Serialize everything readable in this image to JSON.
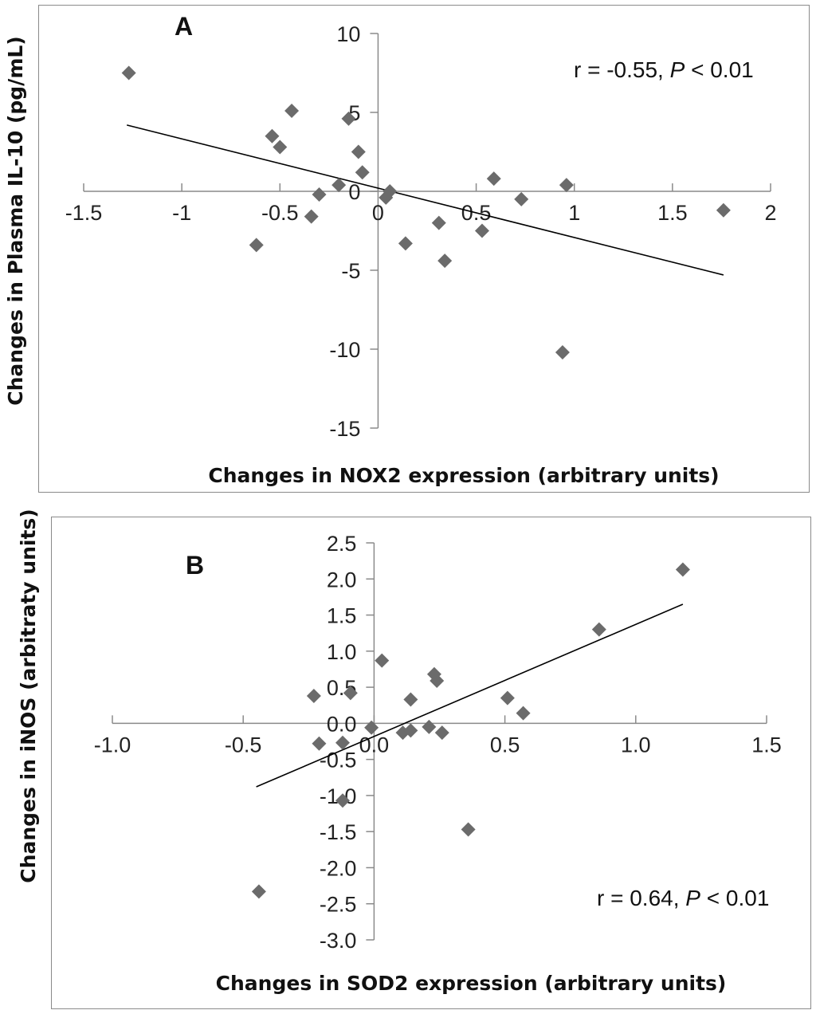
{
  "chart_data": [
    {
      "type": "scatter",
      "panel_label": "A",
      "title": "",
      "xlabel": "Changes in NOX2 expression (arbitrary units)",
      "ylabel": "Changes in Plasma IL-10 (pg/mL)",
      "xlim": [
        -1.5,
        2
      ],
      "ylim": [
        -15,
        10
      ],
      "xticks": [
        "-1.5",
        "-1",
        "-0.5",
        "0",
        "0.5",
        "1",
        "1.5",
        "2"
      ],
      "yticks": [
        "10",
        "5",
        "0",
        "-5",
        "-10",
        "-15"
      ],
      "annotation_prefix": "r = -0.55, ",
      "annotation_p": "P",
      "annotation_suffix": " < 0.01",
      "trendline": {
        "x": [
          -1.28,
          1.76
        ],
        "y": [
          4.2,
          -5.3
        ]
      },
      "points": [
        {
          "x": -1.27,
          "y": 7.5
        },
        {
          "x": -0.44,
          "y": 5.1
        },
        {
          "x": -0.15,
          "y": 4.6
        },
        {
          "x": -0.54,
          "y": 3.5
        },
        {
          "x": -0.5,
          "y": 2.8
        },
        {
          "x": -0.1,
          "y": 2.5
        },
        {
          "x": -0.08,
          "y": 1.2
        },
        {
          "x": -0.2,
          "y": 0.4
        },
        {
          "x": 0.06,
          "y": 0.0
        },
        {
          "x": -0.3,
          "y": -0.2
        },
        {
          "x": 0.04,
          "y": -0.4
        },
        {
          "x": -0.34,
          "y": -1.6
        },
        {
          "x": -0.62,
          "y": -3.4
        },
        {
          "x": 0.14,
          "y": -3.3
        },
        {
          "x": 0.31,
          "y": -2.0
        },
        {
          "x": 0.34,
          "y": -4.4
        },
        {
          "x": 0.53,
          "y": -2.5
        },
        {
          "x": 0.59,
          "y": 0.8
        },
        {
          "x": 0.73,
          "y": -0.5
        },
        {
          "x": 0.96,
          "y": 0.4
        },
        {
          "x": 0.94,
          "y": -10.2
        },
        {
          "x": 1.76,
          "y": -1.2
        }
      ]
    },
    {
      "type": "scatter",
      "panel_label": "B",
      "title": "",
      "xlabel": "Changes in SOD2 expression (arbitrary units)",
      "ylabel": "Changes in iNOS (arbitraty units)",
      "xlim": [
        -1.0,
        1.5
      ],
      "ylim": [
        -3.0,
        2.5
      ],
      "xticks": [
        "-1.0",
        "-0.5",
        "0.0",
        "0.5",
        "1.0",
        "1.5"
      ],
      "yticks": [
        "2.5",
        "2.0",
        "1.5",
        "1.0",
        "0.5",
        "0.0",
        "-0.5",
        "-1.0",
        "-1.5",
        "-2.0",
        "-2.5",
        "-3.0"
      ],
      "annotation_prefix": "r = 0.64, ",
      "annotation_p": "P",
      "annotation_suffix": " < 0.01",
      "trendline": {
        "x": [
          -0.45,
          1.18
        ],
        "y": [
          -0.88,
          1.65
        ]
      },
      "points": [
        {
          "x": 1.18,
          "y": 2.13
        },
        {
          "x": 0.86,
          "y": 1.3
        },
        {
          "x": 0.03,
          "y": 0.87
        },
        {
          "x": 0.23,
          "y": 0.68
        },
        {
          "x": 0.24,
          "y": 0.59
        },
        {
          "x": -0.23,
          "y": 0.38
        },
        {
          "x": -0.09,
          "y": 0.42
        },
        {
          "x": 0.14,
          "y": 0.33
        },
        {
          "x": 0.51,
          "y": 0.35
        },
        {
          "x": 0.57,
          "y": 0.14
        },
        {
          "x": -0.01,
          "y": -0.06
        },
        {
          "x": 0.11,
          "y": -0.13
        },
        {
          "x": 0.14,
          "y": -0.1
        },
        {
          "x": 0.21,
          "y": -0.05
        },
        {
          "x": 0.26,
          "y": -0.13
        },
        {
          "x": -0.21,
          "y": -0.28
        },
        {
          "x": -0.12,
          "y": -0.27
        },
        {
          "x": -0.12,
          "y": -1.07
        },
        {
          "x": 0.36,
          "y": -1.47
        },
        {
          "x": -0.44,
          "y": -2.33
        }
      ]
    }
  ]
}
